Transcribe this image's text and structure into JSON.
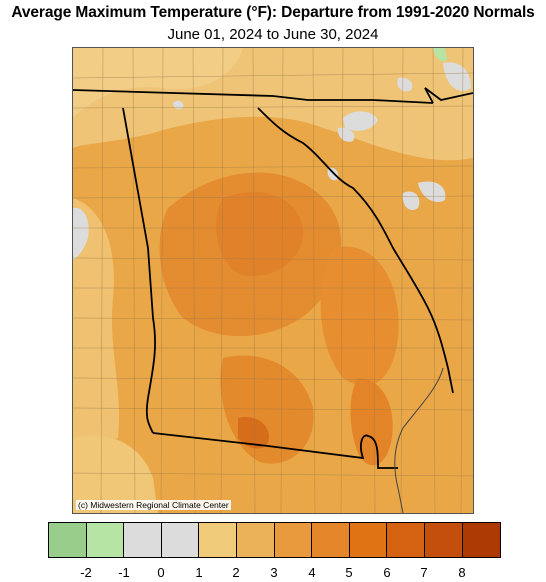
{
  "title": "Average Maximum Temperature (°F): Departure from 1991-2020 Normals",
  "subtitle": "June 01, 2024 to June 30, 2024",
  "credit": "(c) Midwestern Regional Climate Center",
  "legend": {
    "bins": [
      {
        "color": "#98cd8b"
      },
      {
        "color": "#b5e4a5"
      },
      {
        "color": "#dcdcdc"
      },
      {
        "color": "#dcdcdc"
      },
      {
        "color": "#f0cb7a"
      },
      {
        "color": "#ecb25a"
      },
      {
        "color": "#e99a3c"
      },
      {
        "color": "#e5862a"
      },
      {
        "color": "#e07415"
      },
      {
        "color": "#d46210"
      },
      {
        "color": "#c44e0b"
      },
      {
        "color": "#ad3a05"
      }
    ],
    "ticks": [
      "-2",
      "-1",
      "0",
      "1",
      "2",
      "3",
      "4",
      "5",
      "6",
      "7",
      "8"
    ]
  }
}
